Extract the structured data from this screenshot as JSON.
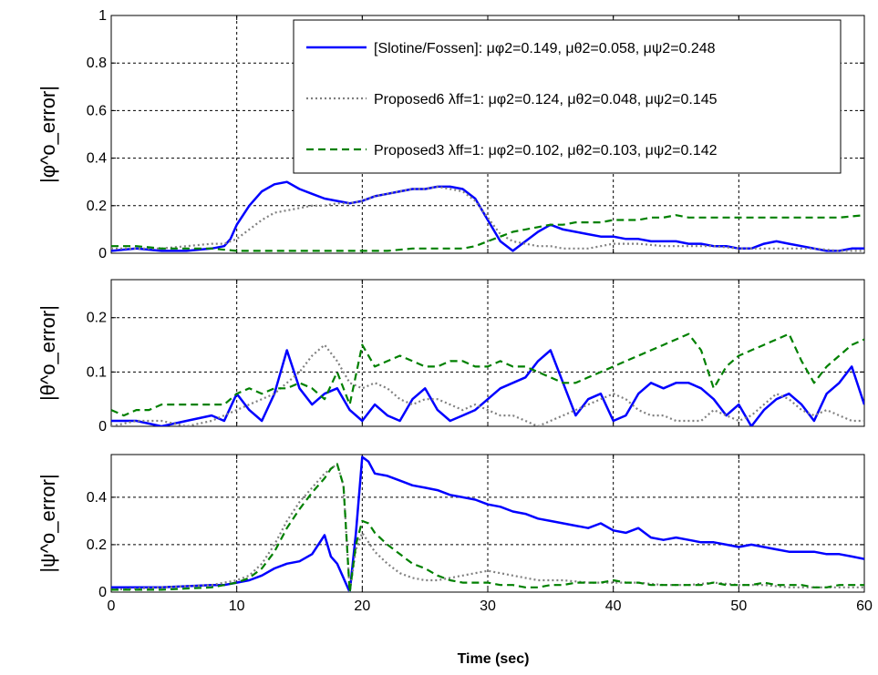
{
  "chart_data": [
    {
      "type": "line",
      "ylabel": "|φ^o_error|",
      "xlim": [
        0,
        60
      ],
      "ylim": [
        0,
        1
      ],
      "yticks": [
        "0",
        "0.2",
        "0.4",
        "0.6",
        "0.8",
        "1"
      ],
      "grid": true,
      "legend": {
        "placement": "top-right",
        "entries": [
          {
            "series": "slotine",
            "text": "[Slotine/Fossen]: μφ2=0.149, μθ2=0.058, μψ2=0.248"
          },
          {
            "series": "proposed6",
            "text": "Proposed6 λff=1: μφ2=0.124, μθ2=0.048, μψ2=0.145"
          },
          {
            "series": "proposed3",
            "text": "Proposed3 λff=1: μφ2=0.102, μθ2=0.103, μψ2=0.142"
          }
        ]
      },
      "series": [
        {
          "id": "slotine",
          "color": "#0000ff",
          "dash": "solid",
          "x": [
            0,
            2,
            4,
            6,
            8,
            9,
            9.5,
            10,
            11,
            12,
            13,
            14,
            15,
            16,
            17,
            18,
            19,
            20,
            21,
            22,
            23,
            24,
            25,
            26,
            27,
            28,
            29,
            30,
            31,
            32,
            33,
            34,
            35,
            36,
            37,
            38,
            39,
            40,
            41,
            42,
            43,
            44,
            45,
            46,
            47,
            48,
            49,
            50,
            51,
            52,
            53,
            54,
            55,
            56,
            57,
            58,
            59,
            60
          ],
          "y": [
            0.01,
            0.02,
            0.01,
            0.01,
            0.02,
            0.03,
            0.06,
            0.12,
            0.2,
            0.26,
            0.29,
            0.3,
            0.27,
            0.25,
            0.23,
            0.22,
            0.21,
            0.22,
            0.24,
            0.25,
            0.26,
            0.27,
            0.27,
            0.28,
            0.28,
            0.27,
            0.23,
            0.14,
            0.05,
            0.01,
            0.05,
            0.09,
            0.12,
            0.1,
            0.09,
            0.08,
            0.07,
            0.07,
            0.06,
            0.06,
            0.05,
            0.05,
            0.05,
            0.04,
            0.04,
            0.03,
            0.03,
            0.02,
            0.02,
            0.04,
            0.05,
            0.04,
            0.03,
            0.02,
            0.01,
            0.01,
            0.02,
            0.02
          ]
        },
        {
          "id": "proposed6",
          "color": "#808080",
          "dash": "dotted",
          "x": [
            0,
            2,
            4,
            6,
            8,
            9,
            10,
            11,
            12,
            13,
            14,
            15,
            16,
            17,
            18,
            19,
            20,
            21,
            22,
            23,
            24,
            25,
            26,
            27,
            28,
            29,
            30,
            31,
            32,
            33,
            34,
            35,
            36,
            37,
            38,
            39,
            40,
            42,
            44,
            46,
            48,
            50,
            52,
            54,
            56,
            58,
            60
          ],
          "y": [
            0.02,
            0.02,
            0.02,
            0.03,
            0.04,
            0.04,
            0.06,
            0.1,
            0.14,
            0.17,
            0.18,
            0.19,
            0.2,
            0.2,
            0.21,
            0.21,
            0.22,
            0.24,
            0.25,
            0.26,
            0.27,
            0.27,
            0.28,
            0.27,
            0.26,
            0.22,
            0.15,
            0.08,
            0.05,
            0.04,
            0.03,
            0.03,
            0.02,
            0.02,
            0.02,
            0.03,
            0.04,
            0.04,
            0.03,
            0.03,
            0.03,
            0.02,
            0.02,
            0.02,
            0.02,
            0.01,
            0.01
          ]
        },
        {
          "id": "proposed3",
          "color": "#008000",
          "dash": "dashed",
          "x": [
            0,
            2,
            4,
            6,
            8,
            10,
            12,
            14,
            16,
            18,
            20,
            22,
            24,
            26,
            28,
            29,
            30,
            31,
            32,
            33,
            34,
            35,
            36,
            37,
            38,
            39,
            40,
            41,
            42,
            43,
            44,
            45,
            46,
            48,
            50,
            52,
            54,
            56,
            58,
            60
          ],
          "y": [
            0.03,
            0.03,
            0.02,
            0.02,
            0.02,
            0.01,
            0.01,
            0.01,
            0.01,
            0.01,
            0.01,
            0.01,
            0.02,
            0.02,
            0.02,
            0.03,
            0.05,
            0.07,
            0.09,
            0.1,
            0.11,
            0.12,
            0.12,
            0.13,
            0.13,
            0.13,
            0.14,
            0.14,
            0.14,
            0.15,
            0.15,
            0.16,
            0.15,
            0.15,
            0.15,
            0.15,
            0.15,
            0.15,
            0.15,
            0.16
          ]
        }
      ]
    },
    {
      "type": "line",
      "ylabel": "|θ^o_error|",
      "xlim": [
        0,
        60
      ],
      "ylim": [
        0,
        0.27
      ],
      "yticks": [
        "0",
        "0.1",
        "0.2"
      ],
      "grid": true,
      "series": [
        {
          "id": "slotine",
          "color": "#0000ff",
          "dash": "solid",
          "x": [
            0,
            2,
            4,
            6,
            8,
            9,
            10,
            11,
            12,
            13,
            14,
            15,
            16,
            17,
            18,
            19,
            20,
            21,
            22,
            23,
            24,
            25,
            26,
            27,
            28,
            29,
            30,
            31,
            32,
            33,
            34,
            35,
            36,
            37,
            38,
            39,
            40,
            41,
            42,
            43,
            44,
            45,
            46,
            47,
            48,
            49,
            50,
            51,
            52,
            53,
            54,
            55,
            56,
            57,
            58,
            59,
            60
          ],
          "y": [
            0.01,
            0.01,
            0.0,
            0.01,
            0.02,
            0.01,
            0.06,
            0.03,
            0.01,
            0.06,
            0.14,
            0.07,
            0.04,
            0.06,
            0.07,
            0.03,
            0.01,
            0.04,
            0.02,
            0.01,
            0.05,
            0.07,
            0.03,
            0.01,
            0.02,
            0.03,
            0.05,
            0.07,
            0.08,
            0.09,
            0.12,
            0.14,
            0.08,
            0.02,
            0.05,
            0.06,
            0.01,
            0.02,
            0.06,
            0.08,
            0.07,
            0.08,
            0.08,
            0.07,
            0.05,
            0.02,
            0.04,
            0.0,
            0.03,
            0.05,
            0.06,
            0.04,
            0.01,
            0.06,
            0.08,
            0.11,
            0.04
          ]
        },
        {
          "id": "proposed6",
          "color": "#808080",
          "dash": "dotted",
          "x": [
            0,
            2,
            4,
            6,
            8,
            10,
            11,
            12,
            13,
            14,
            15,
            16,
            17,
            18,
            19,
            20,
            21,
            22,
            23,
            24,
            25,
            26,
            27,
            28,
            29,
            30,
            31,
            32,
            33,
            34,
            35,
            36,
            37,
            38,
            39,
            40,
            41,
            42,
            43,
            44,
            45,
            46,
            47,
            48,
            49,
            50,
            51,
            52,
            53,
            54,
            55,
            56,
            57,
            58,
            59,
            60
          ],
          "y": [
            0.0,
            0.01,
            0.01,
            0.0,
            0.01,
            0.03,
            0.04,
            0.05,
            0.06,
            0.08,
            0.1,
            0.13,
            0.15,
            0.12,
            0.08,
            0.07,
            0.08,
            0.07,
            0.05,
            0.04,
            0.05,
            0.05,
            0.04,
            0.03,
            0.04,
            0.03,
            0.02,
            0.02,
            0.01,
            0.0,
            0.01,
            0.02,
            0.03,
            0.04,
            0.05,
            0.06,
            0.05,
            0.03,
            0.02,
            0.02,
            0.01,
            0.01,
            0.01,
            0.03,
            0.02,
            0.01,
            0.02,
            0.04,
            0.06,
            0.05,
            0.03,
            0.02,
            0.03,
            0.02,
            0.01,
            0.01
          ]
        },
        {
          "id": "proposed3",
          "color": "#008000",
          "dash": "dashed",
          "x": [
            0,
            1,
            2,
            3,
            4,
            5,
            6,
            7,
            8,
            9,
            10,
            11,
            12,
            13,
            14,
            15,
            16,
            17,
            18,
            19,
            20,
            21,
            22,
            23,
            24,
            25,
            26,
            27,
            28,
            29,
            30,
            31,
            32,
            33,
            34,
            35,
            36,
            37,
            38,
            39,
            40,
            41,
            42,
            43,
            44,
            45,
            46,
            47,
            48,
            49,
            50,
            51,
            52,
            53,
            54,
            55,
            56,
            57,
            58,
            59,
            60
          ],
          "y": [
            0.03,
            0.02,
            0.03,
            0.03,
            0.04,
            0.04,
            0.04,
            0.04,
            0.04,
            0.04,
            0.06,
            0.07,
            0.06,
            0.07,
            0.07,
            0.08,
            0.07,
            0.05,
            0.1,
            0.04,
            0.15,
            0.11,
            0.12,
            0.13,
            0.12,
            0.11,
            0.11,
            0.12,
            0.12,
            0.11,
            0.11,
            0.12,
            0.11,
            0.11,
            0.1,
            0.09,
            0.08,
            0.08,
            0.09,
            0.1,
            0.11,
            0.12,
            0.13,
            0.14,
            0.15,
            0.16,
            0.17,
            0.14,
            0.07,
            0.11,
            0.13,
            0.14,
            0.15,
            0.16,
            0.17,
            0.12,
            0.08,
            0.11,
            0.13,
            0.15,
            0.16
          ]
        }
      ]
    },
    {
      "type": "line",
      "ylabel": "|ψ^o_error|",
      "xlabel": "Time (sec)",
      "xlim": [
        0,
        60
      ],
      "ylim": [
        0,
        0.58
      ],
      "yticks": [
        "0",
        "0.2",
        "0.4"
      ],
      "xticks": [
        "0",
        "10",
        "20",
        "30",
        "40",
        "50",
        "60"
      ],
      "grid": true,
      "series": [
        {
          "id": "slotine",
          "color": "#0000ff",
          "dash": "solid",
          "x": [
            0,
            4,
            8,
            9,
            10,
            11,
            12,
            13,
            14,
            15,
            16,
            17,
            17.5,
            18,
            18.5,
            19,
            19.5,
            20,
            20.5,
            21,
            22,
            23,
            24,
            25,
            26,
            27,
            28,
            29,
            30,
            31,
            32,
            33,
            34,
            35,
            36,
            37,
            38,
            39,
            40,
            41,
            42,
            43,
            44,
            45,
            46,
            47,
            48,
            49,
            50,
            51,
            52,
            53,
            54,
            55,
            56,
            57,
            58,
            59,
            60
          ],
          "y": [
            0.02,
            0.02,
            0.03,
            0.03,
            0.04,
            0.05,
            0.07,
            0.1,
            0.12,
            0.13,
            0.16,
            0.24,
            0.15,
            0.12,
            0.06,
            0.0,
            0.25,
            0.57,
            0.55,
            0.5,
            0.49,
            0.47,
            0.45,
            0.44,
            0.43,
            0.41,
            0.4,
            0.39,
            0.37,
            0.36,
            0.34,
            0.33,
            0.31,
            0.3,
            0.29,
            0.28,
            0.27,
            0.29,
            0.26,
            0.25,
            0.27,
            0.23,
            0.22,
            0.23,
            0.22,
            0.21,
            0.21,
            0.2,
            0.19,
            0.2,
            0.19,
            0.18,
            0.17,
            0.17,
            0.17,
            0.16,
            0.16,
            0.15,
            0.14
          ]
        },
        {
          "id": "proposed6",
          "color": "#808080",
          "dash": "dotted",
          "x": [
            0,
            4,
            8,
            9,
            10,
            11,
            12,
            13,
            14,
            15,
            16,
            17,
            18,
            18.5,
            19,
            19.5,
            20,
            21,
            22,
            23,
            24,
            25,
            26,
            27,
            28,
            29,
            30,
            31,
            32,
            33,
            34,
            36,
            38,
            40,
            42,
            44,
            46,
            48,
            50,
            52,
            54,
            56,
            58,
            60
          ],
          "y": [
            0.01,
            0.02,
            0.03,
            0.04,
            0.05,
            0.07,
            0.12,
            0.2,
            0.3,
            0.38,
            0.44,
            0.5,
            0.54,
            0.45,
            0.0,
            0.18,
            0.25,
            0.17,
            0.12,
            0.08,
            0.06,
            0.05,
            0.05,
            0.06,
            0.07,
            0.08,
            0.09,
            0.08,
            0.07,
            0.06,
            0.05,
            0.05,
            0.04,
            0.04,
            0.04,
            0.03,
            0.03,
            0.04,
            0.03,
            0.03,
            0.02,
            0.02,
            0.02,
            0.02
          ]
        },
        {
          "id": "proposed3",
          "color": "#008000",
          "dash": "dashed",
          "x": [
            0,
            4,
            8,
            9,
            10,
            11,
            12,
            13,
            14,
            15,
            16,
            17,
            17.5,
            18,
            18.5,
            19,
            19.5,
            20,
            20.5,
            21,
            22,
            23,
            24,
            25,
            26,
            27,
            28,
            29,
            30,
            31,
            32,
            33,
            34,
            35,
            36,
            37,
            38,
            39,
            40,
            41,
            42,
            43,
            44,
            45,
            46,
            47,
            48,
            49,
            50,
            51,
            52,
            53,
            54,
            55,
            56,
            57,
            58,
            59,
            60
          ],
          "y": [
            0.01,
            0.01,
            0.02,
            0.03,
            0.04,
            0.06,
            0.1,
            0.17,
            0.27,
            0.35,
            0.42,
            0.48,
            0.52,
            0.54,
            0.45,
            0.0,
            0.2,
            0.3,
            0.29,
            0.25,
            0.2,
            0.16,
            0.12,
            0.1,
            0.07,
            0.05,
            0.04,
            0.04,
            0.04,
            0.03,
            0.03,
            0.02,
            0.02,
            0.03,
            0.03,
            0.04,
            0.04,
            0.04,
            0.05,
            0.04,
            0.04,
            0.03,
            0.03,
            0.03,
            0.03,
            0.03,
            0.04,
            0.03,
            0.03,
            0.03,
            0.04,
            0.03,
            0.03,
            0.03,
            0.02,
            0.02,
            0.03,
            0.03,
            0.03
          ]
        }
      ]
    }
  ]
}
